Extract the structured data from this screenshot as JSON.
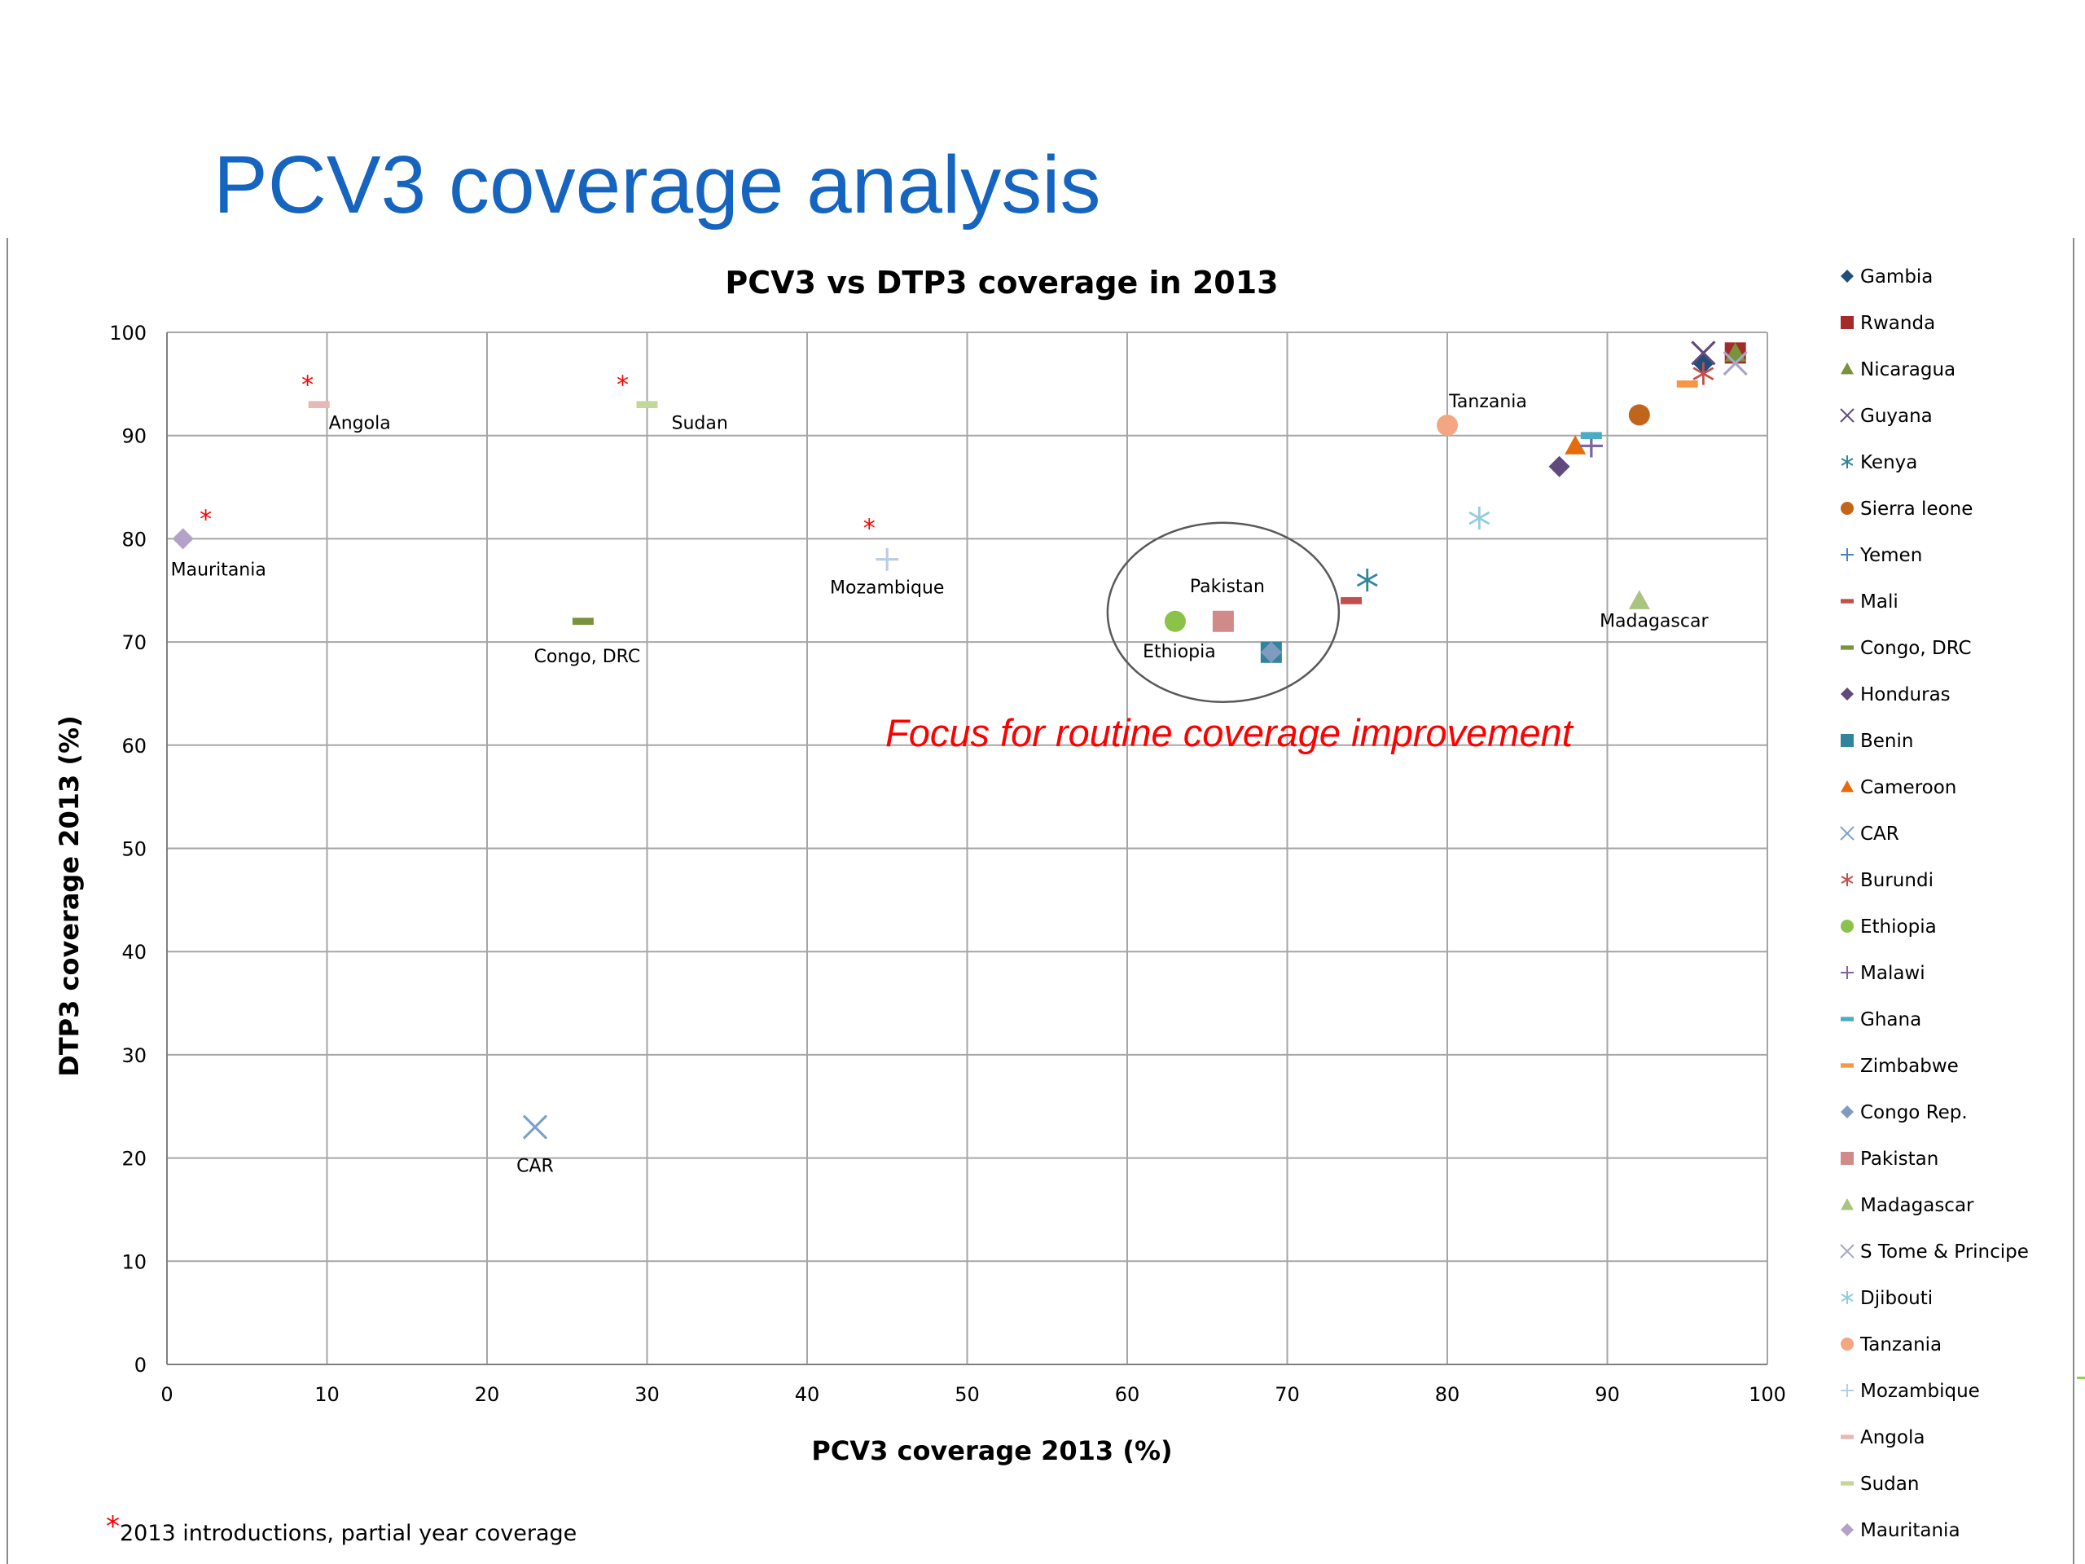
{
  "slide": {
    "title": "PCV3 coverage analysis",
    "focus_note": "Focus for routine coverage improvement",
    "footnote_star": "*",
    "footnote": "2013 introductions, partial year coverage"
  },
  "colors": {
    "title": "#1565c0",
    "focus_note": "#ff0000",
    "grid": "#a6a6a6",
    "star": "#ff0000"
  },
  "chart_data": {
    "type": "scatter",
    "title": "PCV3 vs DTP3 coverage in 2013",
    "xlabel": "PCV3 coverage 2013 (%)",
    "ylabel": "DTP3 coverage 2013 (%)",
    "xlim": [
      0,
      100
    ],
    "ylim": [
      0,
      100
    ],
    "xticks": [
      "0",
      "10",
      "20",
      "30",
      "40",
      "50",
      "60",
      "70",
      "80",
      "90",
      "100"
    ],
    "yticks": [
      "0",
      "10",
      "20",
      "30",
      "40",
      "50",
      "60",
      "70",
      "80",
      "90",
      "100"
    ],
    "grid": true,
    "legend_position": "right",
    "series": [
      {
        "name": "Gambia",
        "x": 96,
        "y": 97,
        "marker": "diamond",
        "color": "#1f4e79"
      },
      {
        "name": "Rwanda",
        "x": 98,
        "y": 98,
        "marker": "square",
        "color": "#a52a2a"
      },
      {
        "name": "Nicaragua",
        "x": 98,
        "y": 98,
        "marker": "triangle",
        "color": "#77933c"
      },
      {
        "name": "Guyana",
        "x": 96,
        "y": 98,
        "marker": "x",
        "color": "#60497a"
      },
      {
        "name": "Kenya",
        "x": 75,
        "y": 76,
        "marker": "asterisk",
        "color": "#31859c"
      },
      {
        "name": "Sierra leone",
        "x": 92,
        "y": 92,
        "marker": "circle",
        "color": "#c0651a"
      },
      {
        "name": "Yemen",
        "x": 89,
        "y": 89,
        "marker": "plus",
        "color": "#4f81bd"
      },
      {
        "name": "Mali",
        "x": 74,
        "y": 74,
        "marker": "dash",
        "color": "#c0504d"
      },
      {
        "name": "Congo, DRC",
        "x": 26,
        "y": 72,
        "marker": "dash",
        "color": "#77933c",
        "label": "Congo, DRC"
      },
      {
        "name": "Honduras",
        "x": 87,
        "y": 87,
        "marker": "diamond",
        "color": "#604a7b"
      },
      {
        "name": "Benin",
        "x": 69,
        "y": 69,
        "marker": "square",
        "color": "#31849b"
      },
      {
        "name": "Cameroon",
        "x": 88,
        "y": 89,
        "marker": "triangle",
        "color": "#e46c0a"
      },
      {
        "name": "CAR",
        "x": 23,
        "y": 23,
        "marker": "x",
        "color": "#7ba0cd",
        "label": "CAR"
      },
      {
        "name": "Burundi",
        "x": 96,
        "y": 96,
        "marker": "asterisk",
        "color": "#c0504d"
      },
      {
        "name": "Ethiopia",
        "x": 63,
        "y": 72,
        "marker": "circle",
        "color": "#8bc34a",
        "label": "Ethiopia"
      },
      {
        "name": "Malawi",
        "x": 89,
        "y": 89,
        "marker": "plus",
        "color": "#8064a2"
      },
      {
        "name": "Ghana",
        "x": 89,
        "y": 90,
        "marker": "dash",
        "color": "#4bacc6"
      },
      {
        "name": "Zimbabwe",
        "x": 95,
        "y": 95,
        "marker": "dash",
        "color": "#f79646"
      },
      {
        "name": "Congo Rep.",
        "x": 69,
        "y": 69,
        "marker": "diamond",
        "color": "#7f9cc0"
      },
      {
        "name": "Pakistan",
        "x": 66,
        "y": 72,
        "marker": "square",
        "color": "#d08a8a",
        "label": "Pakistan"
      },
      {
        "name": "Madagascar",
        "x": 92,
        "y": 74,
        "marker": "triangle",
        "color": "#a9c47f",
        "label": "Madagascar"
      },
      {
        "name": "S Tome & Principe",
        "x": 98,
        "y": 97,
        "marker": "x",
        "color": "#a6a6c8"
      },
      {
        "name": "Djibouti",
        "x": 82,
        "y": 82,
        "marker": "asterisk",
        "color": "#93cddd"
      },
      {
        "name": "Tanzania",
        "x": 80,
        "y": 91,
        "marker": "circle",
        "color": "#f4a582",
        "label": "Tanzania"
      },
      {
        "name": "Mozambique",
        "x": 45,
        "y": 78,
        "marker": "plus",
        "color": "#b9cde5",
        "label": "Mozambique",
        "star": true
      },
      {
        "name": "Angola",
        "x": 9.5,
        "y": 93,
        "marker": "dash",
        "color": "#e6b9b8",
        "label": "Angola",
        "star": true
      },
      {
        "name": "Sudan",
        "x": 30,
        "y": 93,
        "marker": "dash",
        "color": "#c4d79b",
        "label": "Sudan",
        "star": true
      },
      {
        "name": "Mauritania",
        "x": 1,
        "y": 80,
        "marker": "diamond",
        "color": "#b3a2c7",
        "label": "Mauritania",
        "star": true
      }
    ],
    "annotations": [
      {
        "type": "ellipse",
        "around": [
          "Pakistan",
          "Ethiopia",
          "Benin",
          "Congo Rep."
        ]
      }
    ]
  }
}
